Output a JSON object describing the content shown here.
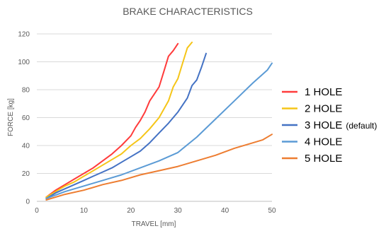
{
  "chart_data": {
    "type": "line",
    "title": "BRAKE CHARACTERISTICS",
    "xlabel": "TRAVEL [mm]",
    "ylabel": "FORCE [kg]",
    "xlim": [
      0,
      50
    ],
    "ylim": [
      0,
      120
    ],
    "xticks": [
      "0",
      "10",
      "20",
      "30",
      "40",
      "50"
    ],
    "yticks": [
      "0",
      "20",
      "40",
      "60",
      "80",
      "100",
      "120"
    ],
    "grid": "horizontal",
    "legend_position": "right",
    "series": [
      {
        "name": "1 HOLE",
        "note": "",
        "color": "#ff3b3b",
        "x": [
          2,
          4,
          6,
          8,
          10,
          12,
          14,
          16,
          18,
          20,
          21,
          22,
          23,
          24,
          25,
          26,
          27,
          28,
          29,
          30
        ],
        "y": [
          3,
          8,
          12,
          16,
          20,
          24,
          29,
          34,
          40,
          47,
          53,
          58,
          64,
          72,
          77,
          82,
          93,
          104,
          108,
          113
        ]
      },
      {
        "name": "2 HOLE",
        "note": "",
        "color": "#f5c518",
        "x": [
          2,
          4,
          6,
          8,
          10,
          12,
          14,
          16,
          18,
          20,
          22,
          24,
          26,
          28,
          29,
          30,
          31,
          32,
          33
        ],
        "y": [
          3,
          7,
          11,
          14,
          18,
          22,
          26,
          30,
          34,
          40,
          45,
          52,
          60,
          72,
          82,
          88,
          99,
          110,
          114
        ]
      },
      {
        "name": "3 HOLE",
        "note": "(default)",
        "color": "#4472c4",
        "x": [
          2,
          4,
          6,
          8,
          10,
          12,
          14,
          16,
          18,
          20,
          22,
          24,
          26,
          28,
          30,
          32,
          33,
          34,
          35,
          36
        ],
        "y": [
          2,
          6,
          9,
          12,
          15,
          18,
          21,
          24,
          28,
          32,
          36,
          42,
          49,
          56,
          64,
          74,
          83,
          87,
          96,
          106
        ]
      },
      {
        "name": "4 HOLE",
        "note": "",
        "color": "#5b9bd5",
        "x": [
          2,
          6,
          10,
          14,
          18,
          22,
          26,
          30,
          34,
          38,
          42,
          46,
          49,
          50
        ],
        "y": [
          2,
          7,
          11,
          15,
          19,
          24,
          29,
          35,
          46,
          59,
          72,
          85,
          94,
          99
        ]
      },
      {
        "name": "5 HOLE",
        "note": "",
        "color": "#ed7d31",
        "x": [
          2,
          6,
          10,
          14,
          18,
          22,
          26,
          30,
          34,
          38,
          42,
          46,
          48,
          50
        ],
        "y": [
          1,
          5,
          8,
          12,
          15,
          19,
          22,
          25,
          29,
          33,
          38,
          42,
          44,
          48
        ]
      }
    ]
  }
}
